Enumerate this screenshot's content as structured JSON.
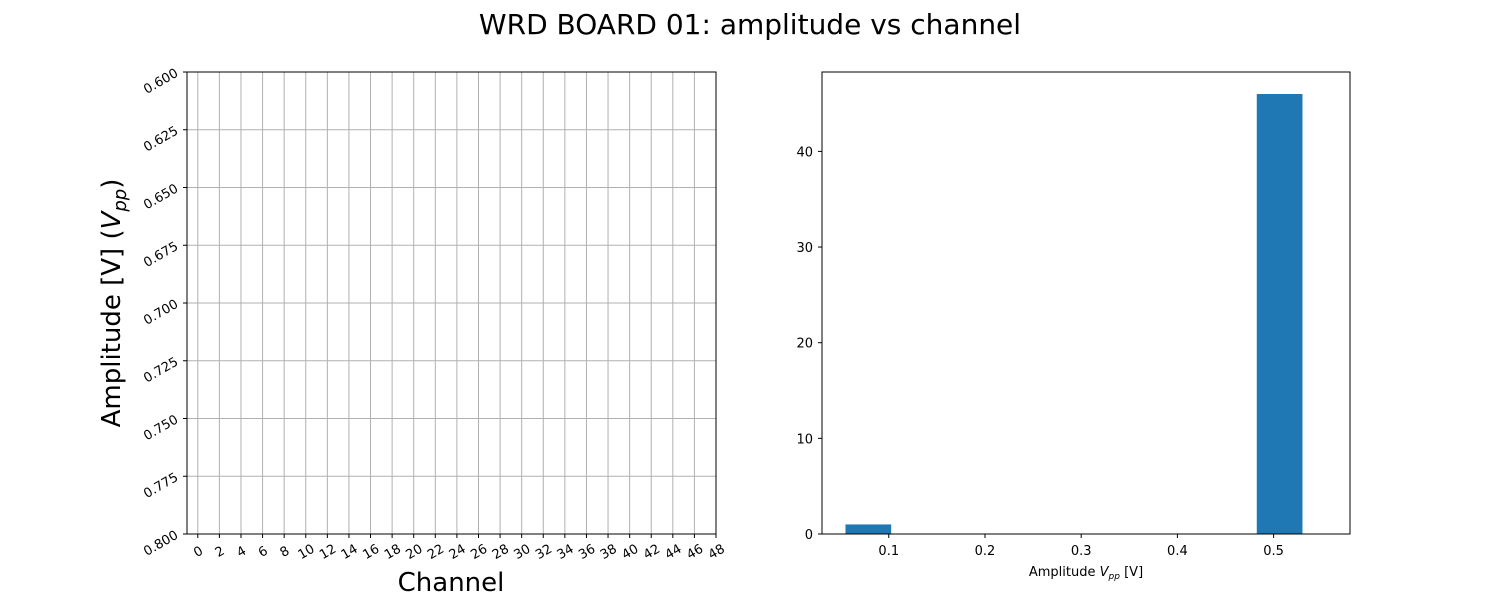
{
  "figure": {
    "suptitle": "WRD BOARD 01: amplitude vs channel"
  },
  "chart_data": [
    {
      "type": "scatter",
      "title": "",
      "xlabel": "Channel",
      "ylabel": "Amplitude [V] (V_pp)",
      "ylabel_parts": {
        "main": "Amplitude [V] (",
        "var": "V",
        "sub": "pp",
        "close": ")"
      },
      "xlim": [
        -1,
        48
      ],
      "ylim": [
        0.8,
        0.6
      ],
      "y_inverted": true,
      "x_ticks": [
        0,
        2,
        4,
        6,
        8,
        10,
        12,
        14,
        16,
        18,
        20,
        22,
        24,
        26,
        28,
        30,
        32,
        34,
        36,
        38,
        40,
        42,
        44,
        46,
        48
      ],
      "y_ticks": [
        "0.600",
        "0.625",
        "0.650",
        "0.675",
        "0.700",
        "0.725",
        "0.750",
        "0.775",
        "0.800"
      ],
      "grid": true,
      "series": []
    },
    {
      "type": "bar",
      "title": "",
      "xlabel": "Amplitude V_pp [V]",
      "xlabel_parts": {
        "main": "Amplitude ",
        "var": "V",
        "sub": "pp",
        "rest": " [V]"
      },
      "ylabel": "",
      "xlim": [
        0.0306,
        0.5794
      ],
      "ylim": [
        0,
        48.3
      ],
      "x_ticks": [
        "0.1",
        "0.2",
        "0.3",
        "0.4",
        "0.5"
      ],
      "y_ticks": [
        "0",
        "10",
        "20",
        "30",
        "40"
      ],
      "grid": false,
      "bars": [
        {
          "x_left": 0.055,
          "x_right": 0.1025,
          "value": 1
        },
        {
          "x_left": 0.4825,
          "x_right": 0.53,
          "value": 46
        }
      ],
      "bar_color": "#1f77b4"
    }
  ]
}
